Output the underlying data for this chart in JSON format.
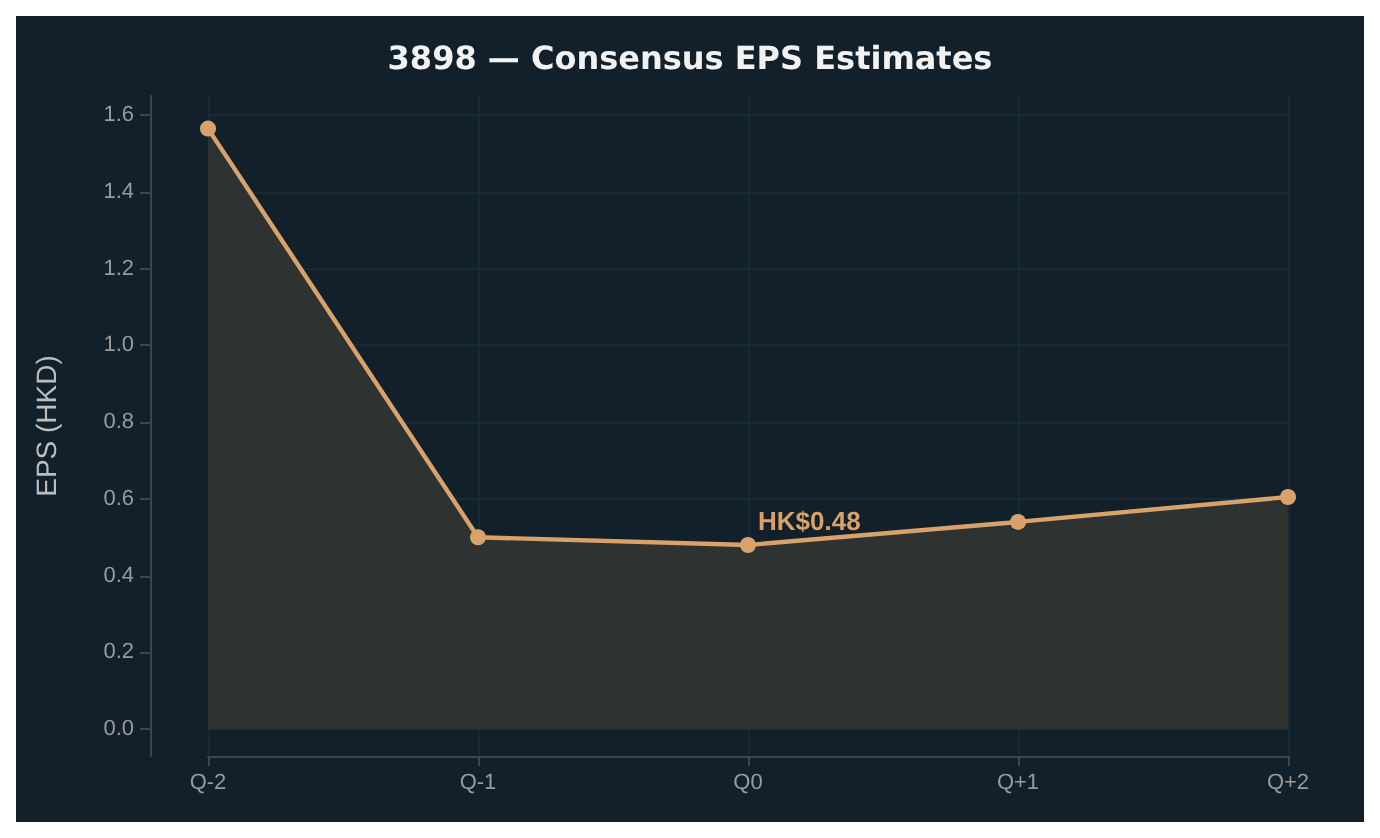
{
  "chart_data": {
    "type": "area",
    "title": "3898 — Consensus EPS Estimates",
    "ylabel": "EPS (HKD)",
    "categories": [
      "Q-2",
      "Q-1",
      "Q0",
      "Q+1",
      "Q+2"
    ],
    "series": [
      {
        "color": "#d9a26b",
        "values": [
          1.565,
          0.5,
          0.48,
          0.54,
          0.605
        ]
      }
    ],
    "ylim": [
      -0.07,
      1.65
    ],
    "yticks": [
      {
        "value": 0,
        "label": "0.0"
      },
      {
        "value": 0.2,
        "label": "0.2"
      },
      {
        "value": 0.4,
        "label": "0.4"
      },
      {
        "value": 0.6,
        "label": "0.6"
      },
      {
        "value": 0.8,
        "label": "0.8"
      },
      {
        "value": 1.0,
        "label": "1.0"
      },
      {
        "value": 1.2,
        "label": "1.2"
      },
      {
        "value": 1.4,
        "label": "1.4"
      },
      {
        "value": 1.6,
        "label": "1.6"
      }
    ],
    "annotations": [
      {
        "text": "HK$0.48",
        "x": "Q0",
        "y": 0.48
      }
    ],
    "grid": true,
    "marker": "circle",
    "line_style": "solid"
  }
}
